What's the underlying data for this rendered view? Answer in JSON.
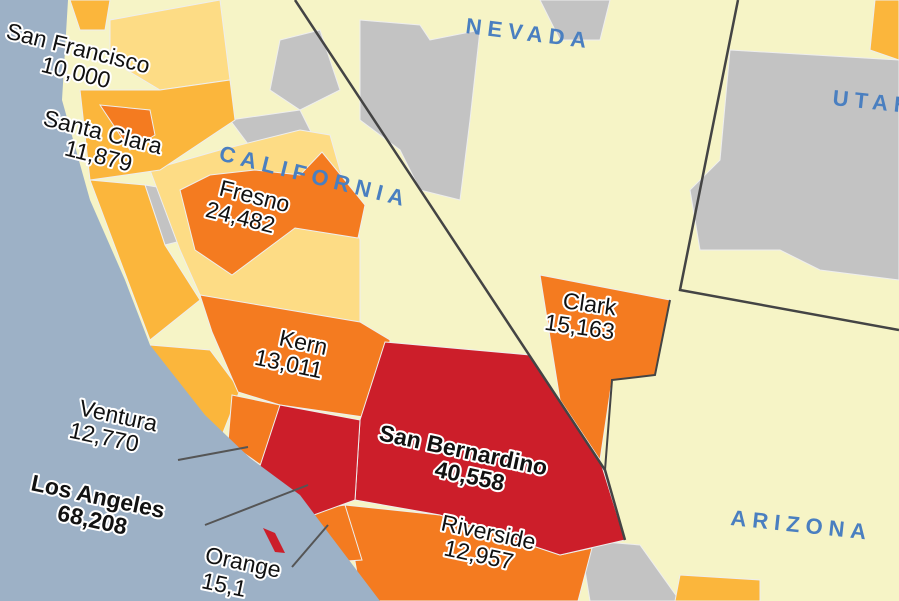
{
  "colors": {
    "ocean": "#9db1c6",
    "land": "#f6f4c6",
    "no_data": "#c3c3c3",
    "pale": "#fddc85",
    "light_orange": "#fbb63c",
    "orange": "#f47b20",
    "red": "#cc1e2a",
    "state_label": "#4a7fc0",
    "border": "#444444"
  },
  "states": [
    "NEVADA",
    "CALIFORNIA",
    "UTAH",
    "ARIZONA"
  ],
  "counties": [
    {
      "name": "San Francisco",
      "value": "10,000"
    },
    {
      "name": "Santa Clara",
      "value": "11,879"
    },
    {
      "name": "Fresno",
      "value": "24,482"
    },
    {
      "name": "Kern",
      "value": "13,011"
    },
    {
      "name": "Clark",
      "value": "15,163"
    },
    {
      "name": "Ventura",
      "value": "12,770"
    },
    {
      "name": "San Bernardino",
      "value": "40,558"
    },
    {
      "name": "Los Angeles",
      "value": "68,208"
    },
    {
      "name": "Riverside",
      "value": "12,957"
    },
    {
      "name": "Orange",
      "value": "15,1"
    }
  ]
}
